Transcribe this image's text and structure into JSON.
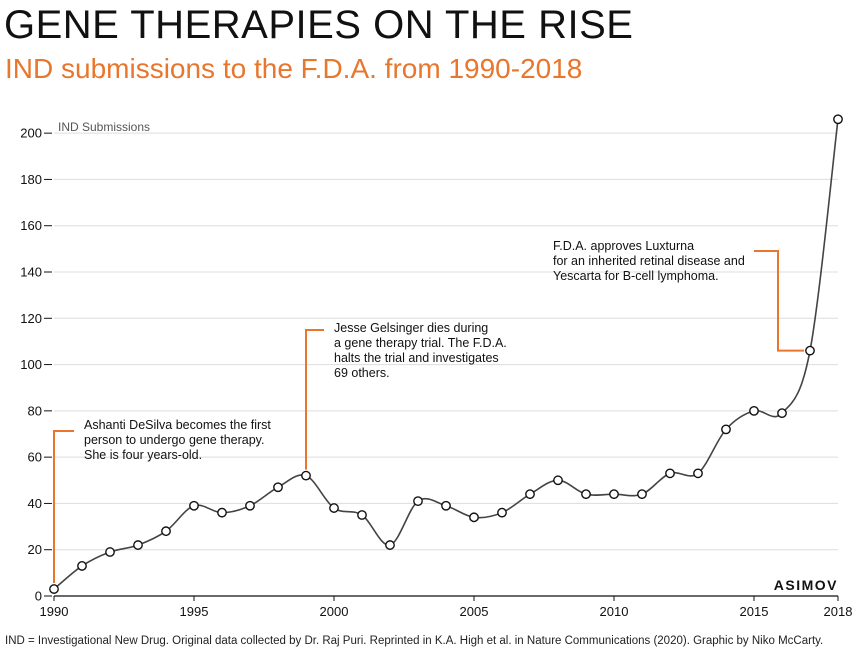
{
  "header": {
    "title": "GENE THERAPIES ON THE RISE",
    "subtitle": "IND submissions to the F.D.A. from 1990-2018"
  },
  "footer": {
    "text": "IND = Investigational New Drug. Original data collected by Dr. Raj Puri. Reprinted in K.A. High et al. in Nature Communications (2020). Graphic by Niko McCarty."
  },
  "brand": "ASIMOV",
  "colors": {
    "accent": "#e8762d",
    "line": "#444444",
    "grid": "#dddddd",
    "text": "#111111"
  },
  "chart_data": {
    "type": "line",
    "title": "GENE THERAPIES ON THE RISE",
    "subtitle": "IND submissions to the F.D.A. from 1990-2018",
    "ylabel": "IND Submissions",
    "xlabel": "",
    "x": [
      1990,
      1991,
      1992,
      1993,
      1994,
      1995,
      1996,
      1997,
      1998,
      1999,
      2000,
      2001,
      2002,
      2003,
      2004,
      2005,
      2006,
      2007,
      2008,
      2009,
      2010,
      2011,
      2012,
      2013,
      2014,
      2015,
      2016,
      2017,
      2018
    ],
    "series": [
      {
        "values": [
          3,
          13,
          19,
          22,
          28,
          39,
          36,
          39,
          47,
          52,
          38,
          35,
          22,
          41,
          39,
          34,
          36,
          44,
          50,
          44,
          44,
          44,
          53,
          53,
          72,
          80,
          79,
          106,
          206
        ]
      }
    ],
    "xlim": [
      1990,
      2018
    ],
    "ylim": [
      0,
      210
    ],
    "xticks": [
      1990,
      1995,
      2000,
      2005,
      2010,
      2015,
      2018
    ],
    "yticks": [
      0,
      20,
      40,
      60,
      80,
      100,
      120,
      140,
      160,
      180,
      200
    ],
    "grid": true,
    "legend": "none",
    "annotations": [
      {
        "x": 1990,
        "y": 3,
        "lines": [
          "Ashanti DeSilva becomes the first",
          "person to undergo gene therapy.",
          "She is four years-old."
        ]
      },
      {
        "x": 1999,
        "y": 52,
        "lines": [
          "Jesse Gelsinger dies during",
          "a gene therapy trial. The F.D.A.",
          "halts the trial and investigates",
          "69 others."
        ]
      },
      {
        "x": 2017,
        "y": 106,
        "lines": [
          "F.D.A. approves Luxturna",
          "for an inherited retinal disease and",
          "Yescarta for B-cell lymphoma."
        ]
      }
    ]
  }
}
